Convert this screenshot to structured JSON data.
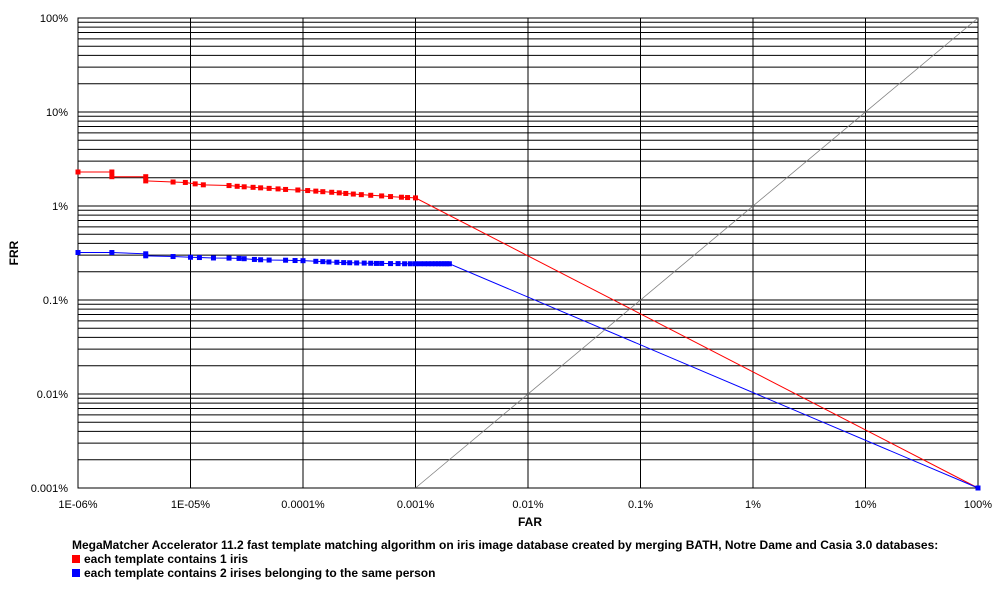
{
  "chart_data": {
    "type": "line",
    "xlabel": "FAR",
    "ylabel": "FRR",
    "x_scale": "log",
    "y_scale": "log",
    "xlim": [
      1e-06,
      100
    ],
    "ylim": [
      0.001,
      100
    ],
    "x_tick_labels": [
      "1E-06%",
      "1E-05%",
      "0.0001%",
      "0.001%",
      "0.01%",
      "0.1%",
      "1%",
      "10%",
      "100%"
    ],
    "y_tick_labels": [
      "0.001%",
      "0.01%",
      "0.1%",
      "1%",
      "10%",
      "100%"
    ],
    "grid": true,
    "series": [
      {
        "name": "each template contains 1 iris",
        "color": "#ff0000",
        "points": [
          [
            1e-06,
            2.3
          ],
          [
            2e-06,
            2.3
          ],
          [
            2e-06,
            2.05
          ],
          [
            4e-06,
            2.05
          ],
          [
            4e-06,
            1.85
          ],
          [
            7e-06,
            1.8
          ],
          [
            9e-06,
            1.78
          ],
          [
            1.1e-05,
            1.72
          ],
          [
            1.3e-05,
            1.68
          ],
          [
            2.2e-05,
            1.65
          ],
          [
            2.6e-05,
            1.62
          ],
          [
            3e-05,
            1.6
          ],
          [
            3.6e-05,
            1.58
          ],
          [
            4.2e-05,
            1.56
          ],
          [
            5e-05,
            1.54
          ],
          [
            6e-05,
            1.52
          ],
          [
            7e-05,
            1.5
          ],
          [
            9e-05,
            1.48
          ],
          [
            0.00011,
            1.46
          ],
          [
            0.00013,
            1.44
          ],
          [
            0.00015,
            1.42
          ],
          [
            0.00018,
            1.4
          ],
          [
            0.00021,
            1.38
          ],
          [
            0.00024,
            1.36
          ],
          [
            0.00028,
            1.34
          ],
          [
            0.00033,
            1.32
          ],
          [
            0.0004,
            1.3
          ],
          [
            0.0005,
            1.28
          ],
          [
            0.0006,
            1.26
          ],
          [
            0.00075,
            1.24
          ],
          [
            0.00085,
            1.23
          ],
          [
            0.001,
            1.22
          ],
          [
            100,
            0.001
          ]
        ]
      },
      {
        "name": "each template contains 2 irises belonging to the same person",
        "color": "#0000ff",
        "points": [
          [
            1e-06,
            0.32
          ],
          [
            2e-06,
            0.32
          ],
          [
            4e-06,
            0.31
          ],
          [
            4e-06,
            0.295
          ],
          [
            7e-06,
            0.29
          ],
          [
            1e-05,
            0.285
          ],
          [
            1.2e-05,
            0.283
          ],
          [
            1.6e-05,
            0.28
          ],
          [
            2.2e-05,
            0.279
          ],
          [
            2.7e-05,
            0.277
          ],
          [
            3e-05,
            0.275
          ],
          [
            3.7e-05,
            0.27
          ],
          [
            4.2e-05,
            0.268
          ],
          [
            5e-05,
            0.266
          ],
          [
            7e-05,
            0.265
          ],
          [
            8.5e-05,
            0.263
          ],
          [
            0.0001,
            0.262
          ],
          [
            0.00013,
            0.258
          ],
          [
            0.00015,
            0.256
          ],
          [
            0.00017,
            0.254
          ],
          [
            0.0002,
            0.252
          ],
          [
            0.00023,
            0.25
          ],
          [
            0.00026,
            0.249
          ],
          [
            0.0003,
            0.248
          ],
          [
            0.00035,
            0.247
          ],
          [
            0.0004,
            0.246
          ],
          [
            0.00045,
            0.245
          ],
          [
            0.0005,
            0.245
          ],
          [
            0.0006,
            0.244
          ],
          [
            0.0007,
            0.244
          ],
          [
            0.0008,
            0.243
          ],
          [
            0.0009,
            0.243
          ],
          [
            0.001,
            0.243
          ],
          [
            0.0011,
            0.243
          ],
          [
            0.0012,
            0.243
          ],
          [
            0.0013,
            0.243
          ],
          [
            0.0014,
            0.243
          ],
          [
            0.0015,
            0.243
          ],
          [
            0.0016,
            0.243
          ],
          [
            0.0017,
            0.243
          ],
          [
            0.0018,
            0.243
          ],
          [
            0.0019,
            0.243
          ],
          [
            0.002,
            0.243
          ],
          [
            100,
            0.001
          ]
        ]
      },
      {
        "name": "",
        "color": "#808080",
        "points": [
          [
            0.001,
            0.001
          ],
          [
            100,
            100
          ]
        ]
      }
    ]
  },
  "caption": {
    "title": "MegaMatcher Accelerator 11.2 fast template matching algorithm on iris image database created by merging BATH, Notre Dame and Casia 3.0 databases:",
    "legend": [
      {
        "label": "each template contains 1 iris",
        "color": "#ff0000"
      },
      {
        "label": "each template contains 2 irises belonging to the same person",
        "color": "#0000ff"
      }
    ]
  }
}
